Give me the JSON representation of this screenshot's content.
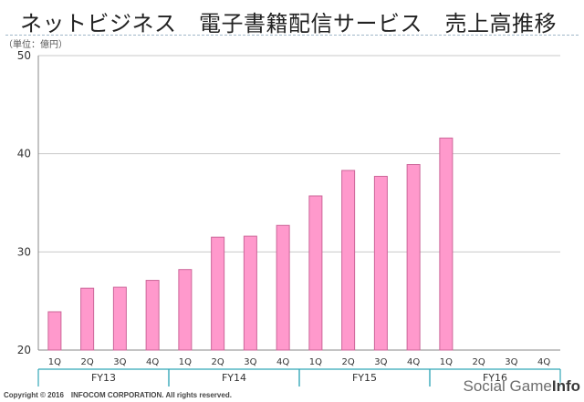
{
  "header": {
    "title": "ネットビジネス　電子書籍配信サービス　売上高推移",
    "unit": "（単位：億円）"
  },
  "footer": {
    "copyright": "Copyright © 2016　INFOCOM CORPORATION. All rights reserved."
  },
  "watermark": {
    "text_main": "Social Game",
    "text_info": "Info"
  },
  "colors": {
    "bar_fill": "#ff99cc",
    "bar_stroke": "#cc6699",
    "group_line": "#31a6b8",
    "axis": "#888888",
    "grid": "#c8c8c8"
  },
  "chart_data": {
    "type": "bar",
    "categories": [
      "1Q",
      "2Q",
      "3Q",
      "4Q",
      "1Q",
      "2Q",
      "3Q",
      "4Q",
      "1Q",
      "2Q",
      "3Q",
      "4Q",
      "1Q",
      "2Q",
      "3Q",
      "4Q"
    ],
    "groups": [
      {
        "label": "FY13",
        "span": 4
      },
      {
        "label": "FY14",
        "span": 4
      },
      {
        "label": "FY15",
        "span": 4
      },
      {
        "label": "FY16",
        "span": 4
      }
    ],
    "values": [
      23.9,
      26.3,
      26.4,
      27.1,
      28.2,
      31.5,
      31.6,
      32.7,
      35.7,
      38.3,
      37.7,
      38.9,
      41.6,
      null,
      null,
      null
    ],
    "ylim": [
      20,
      50
    ],
    "yticks": [
      20,
      30,
      40,
      50
    ],
    "grid": true,
    "legend": "none"
  }
}
